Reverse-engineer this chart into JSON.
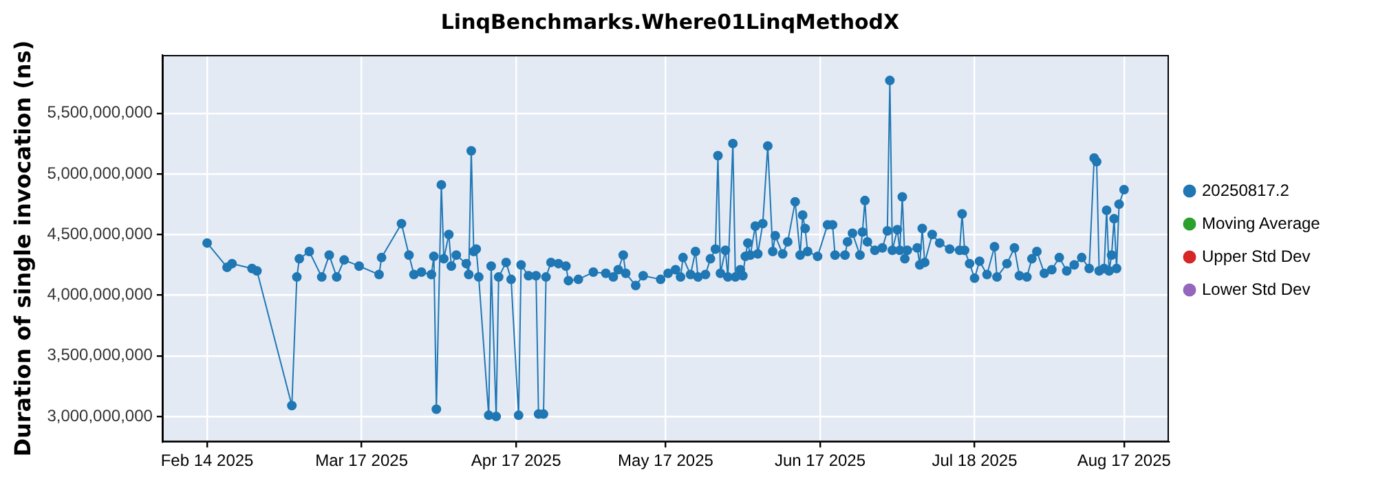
{
  "chart_data": {
    "type": "line",
    "title": "LinqBenchmarks.Where01LinqMethodX",
    "ylabel": "Duration of single invocation (ns)",
    "x": [
      "2025-02-14",
      "2025-02-18",
      "2025-02-19",
      "2025-02-23",
      "2025-02-24",
      "2025-03-03",
      "2025-03-04",
      "2025-03-04T12:00",
      "2025-03-06T12:00",
      "2025-03-09",
      "2025-03-10T12:00",
      "2025-03-12",
      "2025-03-13T12:00",
      "2025-03-16T12:00",
      "2025-03-20T12:00",
      "2025-03-21",
      "2025-03-25",
      "2025-03-26T12:00",
      "2025-03-27T12:00",
      "2025-03-29",
      "2025-03-31",
      "2025-03-31T12:00",
      "2025-04-01",
      "2025-04-02",
      "2025-04-02T12:00",
      "2025-04-03T12:00",
      "2025-04-04",
      "2025-04-05",
      "2025-04-07",
      "2025-04-07T12:00",
      "2025-04-08",
      "2025-04-08T12:00",
      "2025-04-09",
      "2025-04-09T12:00",
      "2025-04-11T12:00",
      "2025-04-12",
      "2025-04-13",
      "2025-04-13T12:00",
      "2025-04-15",
      "2025-04-16",
      "2025-04-17T12:00",
      "2025-04-18",
      "2025-04-19T12:00",
      "2025-04-21",
      "2025-04-21T12:00",
      "2025-04-22T12:00",
      "2025-04-23",
      "2025-04-24",
      "2025-04-25T12:00",
      "2025-04-27",
      "2025-04-27T12:00",
      "2025-04-29T12:00",
      "2025-05-02T12:00",
      "2025-05-05",
      "2025-05-06T12:00",
      "2025-05-07T12:00",
      "2025-05-08T12:00",
      "2025-05-09",
      "2025-05-11",
      "2025-05-12T12:00",
      "2025-05-16",
      "2025-05-17T12:00",
      "2025-05-19",
      "2025-05-20",
      "2025-05-20T12:00",
      "2025-05-22",
      "2025-05-23",
      "2025-05-23T12:00",
      "2025-05-25",
      "2025-05-26",
      "2025-05-27",
      "2025-05-27T12:00",
      "2025-05-28",
      "2025-05-29",
      "2025-05-29T12:00",
      "2025-05-30T12:00",
      "2025-05-31",
      "2025-06-01",
      "2025-06-01T12:00",
      "2025-06-02",
      "2025-06-02T12:00",
      "2025-06-03",
      "2025-06-04",
      "2025-06-04T12:00",
      "2025-06-05T12:00",
      "2025-06-06T12:00",
      "2025-06-07T12:00",
      "2025-06-08",
      "2025-06-09T12:00",
      "2025-06-10T12:00",
      "2025-06-12",
      "2025-06-13",
      "2025-06-13T12:00",
      "2025-06-14",
      "2025-06-14T12:00",
      "2025-06-16T12:00",
      "2025-06-18T12:00",
      "2025-06-19T12:00",
      "2025-06-20",
      "2025-06-22",
      "2025-06-22T12:00",
      "2025-06-23T12:00",
      "2025-06-25",
      "2025-06-25T12:00",
      "2025-06-26",
      "2025-06-26T12:00",
      "2025-06-28",
      "2025-06-29T12:00",
      "2025-06-30T12:00",
      "2025-07-01",
      "2025-07-01T12:00",
      "2025-07-02T12:00",
      "2025-07-03",
      "2025-07-03T12:00",
      "2025-07-04",
      "2025-07-04T12:00",
      "2025-07-06T12:00",
      "2025-07-07",
      "2025-07-07T12:00",
      "2025-07-08",
      "2025-07-09T12:00",
      "2025-07-11",
      "2025-07-13",
      "2025-07-15",
      "2025-07-15T12:00",
      "2025-07-16",
      "2025-07-17",
      "2025-07-18",
      "2025-07-19",
      "2025-07-20T12:00",
      "2025-07-22",
      "2025-07-22T12:00",
      "2025-07-24T12:00",
      "2025-07-26",
      "2025-07-27",
      "2025-07-28T12:00",
      "2025-07-29T12:00",
      "2025-07-30T12:00",
      "2025-08-01",
      "2025-08-02T12:00",
      "2025-08-04",
      "2025-08-05T12:00",
      "2025-08-07",
      "2025-08-08T12:00",
      "2025-08-10",
      "2025-08-11",
      "2025-08-11T12:00",
      "2025-08-12",
      "2025-08-13",
      "2025-08-13T12:00",
      "2025-08-14",
      "2025-08-14T12:00",
      "2025-08-15",
      "2025-08-15T12:00",
      "2025-08-16",
      "2025-08-17"
    ],
    "series": [
      {
        "name": "20250817.2",
        "color": "#1f77b4",
        "values": [
          4430000000,
          4230000000,
          4260000000,
          4220000000,
          4200000000,
          3090000000,
          4150000000,
          4300000000,
          4360000000,
          4150000000,
          4330000000,
          4150000000,
          4290000000,
          4240000000,
          4170000000,
          4310000000,
          4590000000,
          4330000000,
          4170000000,
          4190000000,
          4170000000,
          4320000000,
          3060000000,
          4910000000,
          4300000000,
          4500000000,
          4240000000,
          4330000000,
          4260000000,
          4170000000,
          5190000000,
          4360000000,
          4380000000,
          4150000000,
          3010000000,
          4240000000,
          3000000000,
          4150000000,
          4270000000,
          4130000000,
          3010000000,
          4250000000,
          4160000000,
          4160000000,
          3020000000,
          3020000000,
          4150000000,
          4270000000,
          4260000000,
          4240000000,
          4120000000,
          4130000000,
          4190000000,
          4180000000,
          4150000000,
          4210000000,
          4330000000,
          4180000000,
          4080000000,
          4160000000,
          4130000000,
          4180000000,
          4210000000,
          4150000000,
          4310000000,
          4170000000,
          4360000000,
          4150000000,
          4170000000,
          4300000000,
          4380000000,
          5150000000,
          4180000000,
          4370000000,
          4150000000,
          5250000000,
          4150000000,
          4210000000,
          4160000000,
          4320000000,
          4430000000,
          4330000000,
          4570000000,
          4340000000,
          4590000000,
          5230000000,
          4360000000,
          4490000000,
          4340000000,
          4440000000,
          4770000000,
          4330000000,
          4660000000,
          4550000000,
          4360000000,
          4320000000,
          4580000000,
          4580000000,
          4330000000,
          4330000000,
          4440000000,
          4510000000,
          4330000000,
          4520000000,
          4780000000,
          4440000000,
          4370000000,
          4390000000,
          4530000000,
          5770000000,
          4370000000,
          4540000000,
          4370000000,
          4810000000,
          4300000000,
          4370000000,
          4390000000,
          4250000000,
          4550000000,
          4270000000,
          4500000000,
          4430000000,
          4380000000,
          4370000000,
          4670000000,
          4370000000,
          4260000000,
          4140000000,
          4280000000,
          4170000000,
          4400000000,
          4150000000,
          4260000000,
          4390000000,
          4160000000,
          4150000000,
          4300000000,
          4360000000,
          4180000000,
          4210000000,
          4310000000,
          4200000000,
          4250000000,
          4310000000,
          4220000000,
          5130000000,
          5100000000,
          4200000000,
          4220000000,
          4700000000,
          4200000000,
          4330000000,
          4630000000,
          4220000000,
          4750000000,
          4870000000
        ]
      },
      {
        "name": "Moving Average",
        "color": "#2ca02c",
        "values": [
          null,
          null,
          null,
          null,
          null,
          null,
          null,
          null,
          null,
          null,
          null,
          null,
          null,
          null,
          null,
          null,
          null,
          null,
          null,
          null,
          null,
          null,
          null,
          null,
          null,
          null,
          null,
          null,
          null,
          null,
          null,
          null,
          null,
          null,
          null,
          null,
          null,
          null,
          null,
          null,
          null,
          null,
          null,
          null,
          null,
          null,
          null,
          null,
          null,
          null,
          null,
          null,
          null,
          null,
          null,
          null,
          null,
          null,
          null,
          null,
          null,
          null,
          null,
          null,
          null,
          null,
          null,
          null,
          null,
          null,
          null,
          null,
          null,
          null,
          null,
          null,
          null,
          null,
          null,
          null,
          null,
          null,
          null,
          null,
          null,
          null,
          null,
          null,
          null,
          null,
          null,
          null,
          null,
          null,
          null,
          null,
          null,
          null,
          null,
          null,
          null,
          null,
          null,
          null,
          null,
          null,
          null,
          null,
          null,
          null,
          null,
          null,
          null,
          null,
          null,
          null,
          null,
          null,
          null,
          null,
          null,
          null,
          null,
          null,
          null,
          null,
          null,
          null,
          null,
          null,
          null,
          null,
          null,
          null,
          null,
          null,
          null,
          null,
          null,
          null,
          null,
          null,
          null,
          null,
          null,
          null,
          null,
          null,
          null,
          null,
          null,
          null,
          null,
          null,
          null,
          null
        ]
      },
      {
        "name": "Upper Std Dev",
        "color": "#d62728",
        "values": [
          null,
          null,
          null,
          null,
          null,
          null,
          null,
          null,
          null,
          null,
          null,
          null,
          null,
          null,
          null,
          null,
          null,
          null,
          null,
          null,
          null,
          null,
          null,
          null,
          null,
          null,
          null,
          null,
          null,
          null,
          null,
          null,
          null,
          null,
          null,
          null,
          null,
          null,
          null,
          null,
          null,
          null,
          null,
          null,
          null,
          null,
          null,
          null,
          null,
          null,
          null,
          null,
          null,
          null,
          null,
          null,
          null,
          null,
          null,
          null,
          null,
          null,
          null,
          null,
          null,
          null,
          null,
          null,
          null,
          null,
          null,
          null,
          null,
          null,
          null,
          null,
          null,
          null,
          null,
          null,
          null,
          null,
          null,
          null,
          null,
          null,
          null,
          null,
          null,
          null,
          null,
          null,
          null,
          null,
          null,
          null,
          null,
          null,
          null,
          null,
          null,
          null,
          null,
          null,
          null,
          null,
          null,
          null,
          null,
          null,
          null,
          null,
          null,
          null,
          null,
          null,
          null,
          null,
          null,
          null,
          null,
          null,
          null,
          null,
          null,
          null,
          null,
          null,
          null,
          null,
          null,
          null,
          null,
          null,
          null,
          null,
          null,
          null,
          null,
          null,
          null,
          null,
          null,
          null,
          null,
          null,
          null,
          null,
          null,
          null,
          null,
          null,
          null,
          null,
          null,
          null
        ]
      },
      {
        "name": "Lower Std Dev",
        "color": "#9467bd",
        "values": [
          null,
          null,
          null,
          null,
          null,
          null,
          null,
          null,
          null,
          null,
          null,
          null,
          null,
          null,
          null,
          null,
          null,
          null,
          null,
          null,
          null,
          null,
          null,
          null,
          null,
          null,
          null,
          null,
          null,
          null,
          null,
          null,
          null,
          null,
          null,
          null,
          null,
          null,
          null,
          null,
          null,
          null,
          null,
          null,
          null,
          null,
          null,
          null,
          null,
          null,
          null,
          null,
          null,
          null,
          null,
          null,
          null,
          null,
          null,
          null,
          null,
          null,
          null,
          null,
          null,
          null,
          null,
          null,
          null,
          null,
          null,
          null,
          null,
          null,
          null,
          null,
          null,
          null,
          null,
          null,
          null,
          null,
          null,
          null,
          null,
          null,
          null,
          null,
          null,
          null,
          null,
          null,
          null,
          null,
          null,
          null,
          null,
          null,
          null,
          null,
          null,
          null,
          null,
          null,
          null,
          null,
          null,
          null,
          null,
          null,
          null,
          null,
          null,
          null,
          null,
          null,
          null,
          null,
          null,
          null,
          null,
          null,
          null,
          null,
          null,
          null,
          null,
          null,
          null,
          null,
          null,
          null,
          null,
          null,
          null,
          null,
          null,
          null,
          null,
          null,
          null,
          null,
          null,
          null,
          null,
          null,
          null,
          null,
          null,
          null,
          null,
          null,
          null,
          null,
          null,
          null
        ]
      }
    ],
    "xlim": [
      "2025-02-05",
      "2025-08-26"
    ],
    "xticks": [
      {
        "value": "2025-02-14",
        "label": "Feb 14 2025"
      },
      {
        "value": "2025-03-17",
        "label": "Mar 17 2025"
      },
      {
        "value": "2025-04-17",
        "label": "Apr 17 2025"
      },
      {
        "value": "2025-05-17",
        "label": "May 17 2025"
      },
      {
        "value": "2025-06-17",
        "label": "Jun 17 2025"
      },
      {
        "value": "2025-07-18",
        "label": "Jul 18 2025"
      },
      {
        "value": "2025-08-17",
        "label": "Aug 17 2025"
      }
    ],
    "ylim": [
      2790000000,
      5980000000
    ],
    "yticks": [
      {
        "value": 3000000000,
        "label": "3,000,000,000"
      },
      {
        "value": 3500000000,
        "label": "3,500,000,000"
      },
      {
        "value": 4000000000,
        "label": "4,000,000,000"
      },
      {
        "value": 4500000000,
        "label": "4,500,000,000"
      },
      {
        "value": 5000000000,
        "label": "5,000,000,000"
      },
      {
        "value": 5500000000,
        "label": "5,500,000,000"
      }
    ],
    "grid": true,
    "legend": "right",
    "marker": "circle",
    "line_style": "solid"
  }
}
